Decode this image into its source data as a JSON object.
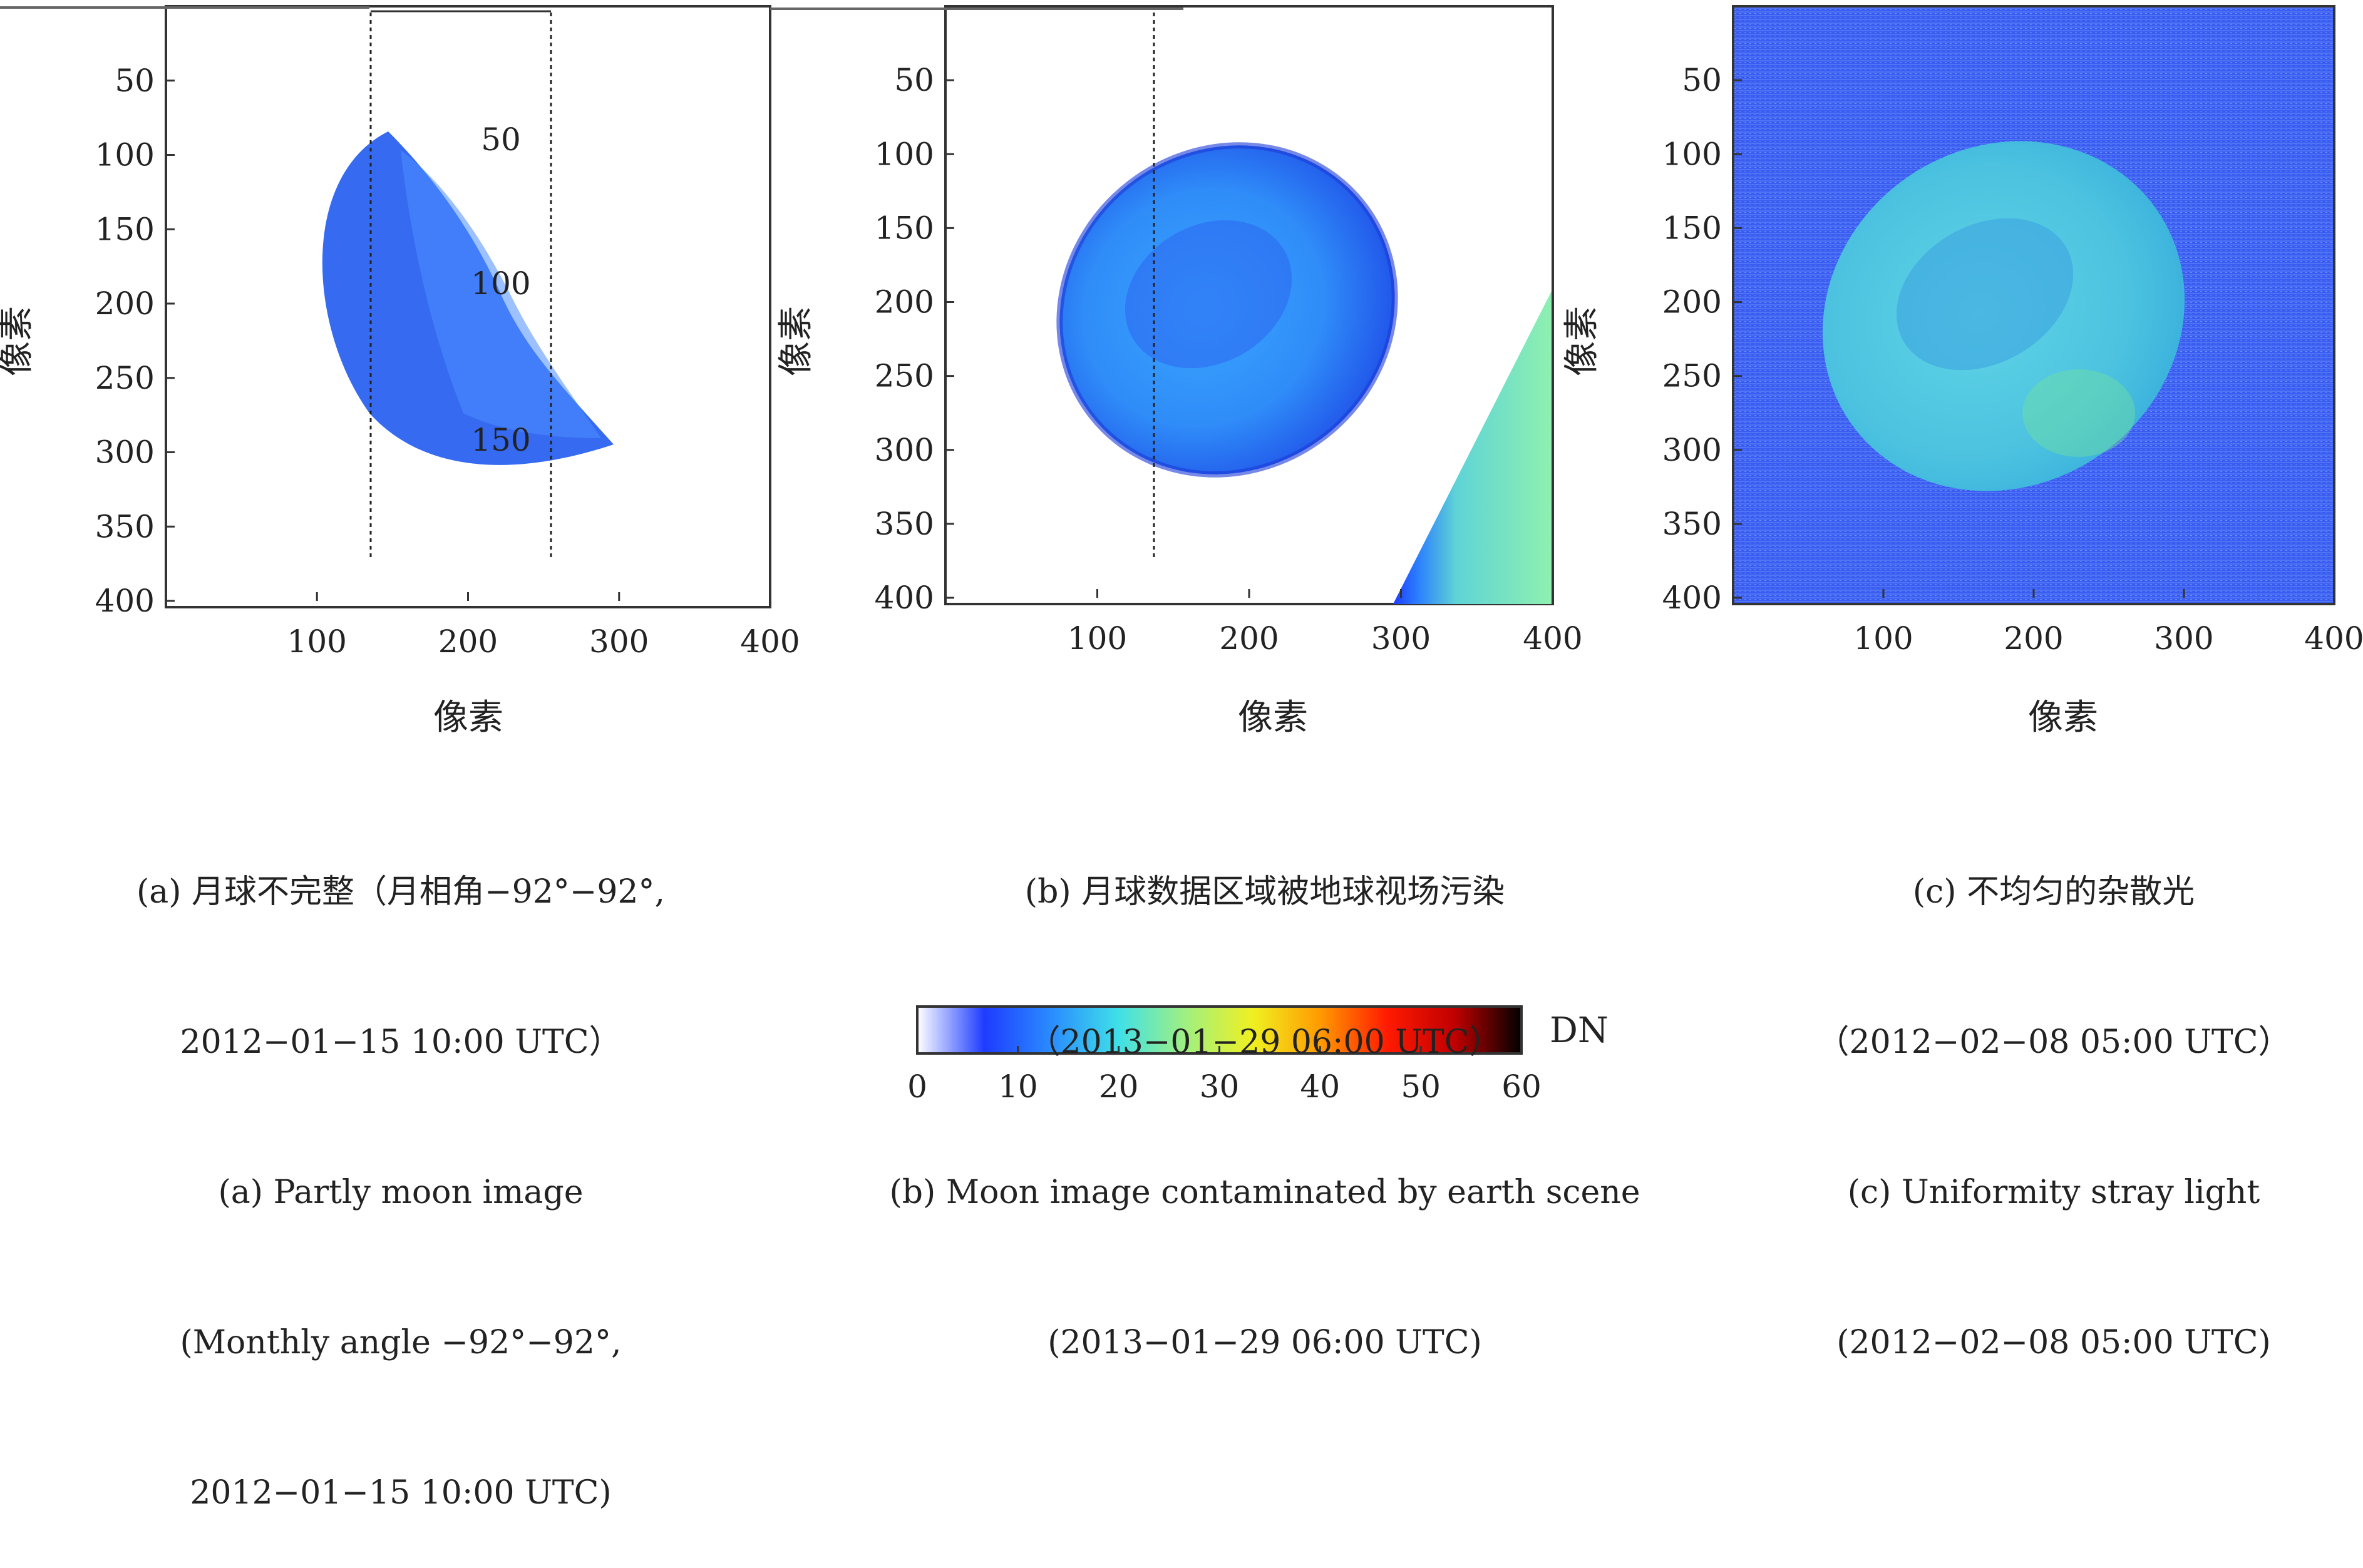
{
  "chart_data": [
    {
      "type": "heatmap",
      "panel": "a",
      "xlabel": "像素",
      "ylabel": "像素",
      "xticks": [
        100,
        200,
        300,
        400
      ],
      "yticks": [
        50,
        100,
        150,
        200,
        250,
        300,
        350,
        400
      ],
      "xlim": [
        0,
        400
      ],
      "ylim": [
        0,
        400
      ],
      "inset_ticks": [
        "50",
        "100",
        "150"
      ],
      "inset_xlim": [
        0,
        120
      ],
      "caption_zh": [
        "(a) 月球不完整（月相角−92°−92°,",
        "2012−01−15 10:00 UTC）"
      ],
      "caption_en": [
        "(a) Partly moon image",
        "(Monthly angle −92°−92°,",
        "2012−01−15 10:00 UTC)"
      ]
    },
    {
      "type": "heatmap",
      "panel": "b",
      "xlabel": "像素",
      "ylabel": "像素",
      "xticks": [
        100,
        200,
        300,
        400
      ],
      "yticks": [
        50,
        100,
        150,
        200,
        250,
        300,
        350,
        400
      ],
      "xlim": [
        0,
        400
      ],
      "ylim": [
        0,
        400
      ],
      "caption_zh": [
        "(b) 月球数据区域被地球视场污染",
        "（2013−01−29 06:00 UTC）"
      ],
      "caption_en": [
        "(b) Moon image contaminated by earth scene",
        "(2013−01−29 06:00 UTC)"
      ]
    },
    {
      "type": "heatmap",
      "panel": "c",
      "xlabel": "像素",
      "ylabel": "像素",
      "xticks": [
        100,
        200,
        300,
        400
      ],
      "yticks": [
        50,
        100,
        150,
        200,
        250,
        300,
        350,
        400
      ],
      "xlim": [
        0,
        400
      ],
      "ylim": [
        0,
        400
      ],
      "caption_zh": [
        "(c) 不均匀的杂散光",
        "（2012−02−08 05:00 UTC）"
      ],
      "caption_en": [
        "(c) Uniformity stray light",
        "(2012−02−08 05:00 UTC)"
      ]
    },
    {
      "type": "colorbar",
      "label": "DN",
      "range": [
        0,
        60
      ],
      "ticks": [
        0,
        10,
        20,
        30,
        40,
        50,
        60
      ],
      "colormap": [
        "#ffffff",
        "#1e3cff",
        "#2a8cff",
        "#3fe0e8",
        "#a0f080",
        "#f0f020",
        "#ff9a00",
        "#ff1a00",
        "#c00000",
        "#000000"
      ]
    }
  ],
  "colors": {
    "moon_dark": "#1f4fe8",
    "moon_mid": "#2e8fff",
    "moon_light": "#5ad6e8",
    "stray_bg": "#3b5ef0",
    "earth": "#6ee0b8"
  }
}
